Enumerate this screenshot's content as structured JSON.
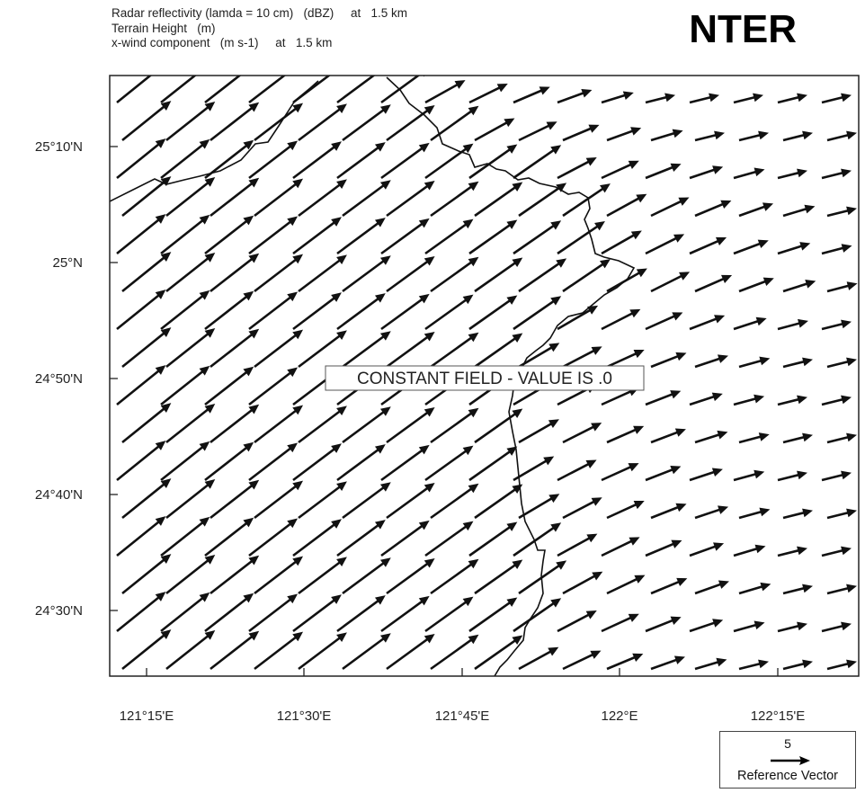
{
  "header": {
    "line1": "Radar reflectivity (lamda = 10 cm)   (dBZ)     at   1.5 km",
    "line2": "Terrain Height   (m)",
    "line3": "x-wind component   (m s-1)     at   1.5 km"
  },
  "badge": "NTER",
  "map": {
    "constant_field_label": "CONSTANT FIELD - VALUE IS .0",
    "lat_ticks": [
      "25°10'N",
      "25°N",
      "24°50'N",
      "24°40'N",
      "24°30'N"
    ],
    "lon_ticks": [
      "121°15'E",
      "121°30'E",
      "121°45'E",
      "122°E",
      "122°15'E"
    ],
    "wind_direction": "from west-southwest, strongest over land, weaker offshore"
  },
  "reference_vector": {
    "magnitude": "5",
    "label": "Reference Vector"
  },
  "colors": {
    "vectors": "#111111",
    "coastline": "#111111",
    "frame": "#222222",
    "background": "#ffffff"
  }
}
